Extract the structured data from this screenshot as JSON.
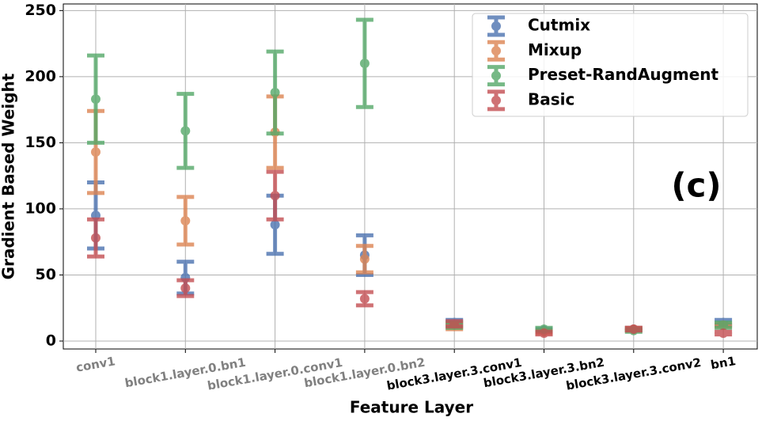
{
  "chart_data": {
    "type": "errorbar",
    "annotation": "(c)",
    "x_label": "Feature Layer",
    "y_label": "Gradient Based Weight",
    "categories": [
      "conv1",
      "block1.layer.0.bn1",
      "block1.layer.0.conv1",
      "block1.layer.0.bn2",
      "block3.layer.3.conv1",
      "block3.layer.3.bn2",
      "block3.layer.3.conv2",
      "bn1"
    ],
    "xtick_colors": [
      "#808080",
      "#808080",
      "#808080",
      "#808080",
      "#000000",
      "#000000",
      "#000000",
      "#000000"
    ],
    "series": [
      {
        "name": "Cutmix",
        "color": "#4c72b0",
        "values": [
          95,
          48,
          88,
          65,
          14,
          8,
          9,
          14
        ],
        "errors": [
          25,
          12,
          22,
          15,
          2,
          1,
          1,
          2
        ]
      },
      {
        "name": "Mixup",
        "color": "#dd8452",
        "values": [
          143,
          91,
          158,
          62,
          11,
          7,
          9,
          12
        ],
        "errors": [
          31,
          18,
          27,
          10,
          2,
          1,
          1,
          1
        ]
      },
      {
        "name": "Preset-RandAugment",
        "color": "#55a868",
        "values": [
          183,
          159,
          188,
          210,
          12,
          9,
          8,
          12
        ],
        "errors": [
          33,
          28,
          31,
          33,
          2,
          1,
          1,
          2
        ]
      },
      {
        "name": "Basic",
        "color": "#c44e52",
        "values": [
          78,
          40,
          110,
          32,
          13,
          6,
          9,
          6
        ],
        "errors": [
          14,
          6,
          18,
          5,
          2,
          1,
          1,
          1
        ]
      }
    ],
    "ylim": [
      -6,
      255
    ],
    "yticks": [
      0,
      50,
      100,
      150,
      200,
      250
    ],
    "grid": true,
    "legend": "upper right"
  }
}
